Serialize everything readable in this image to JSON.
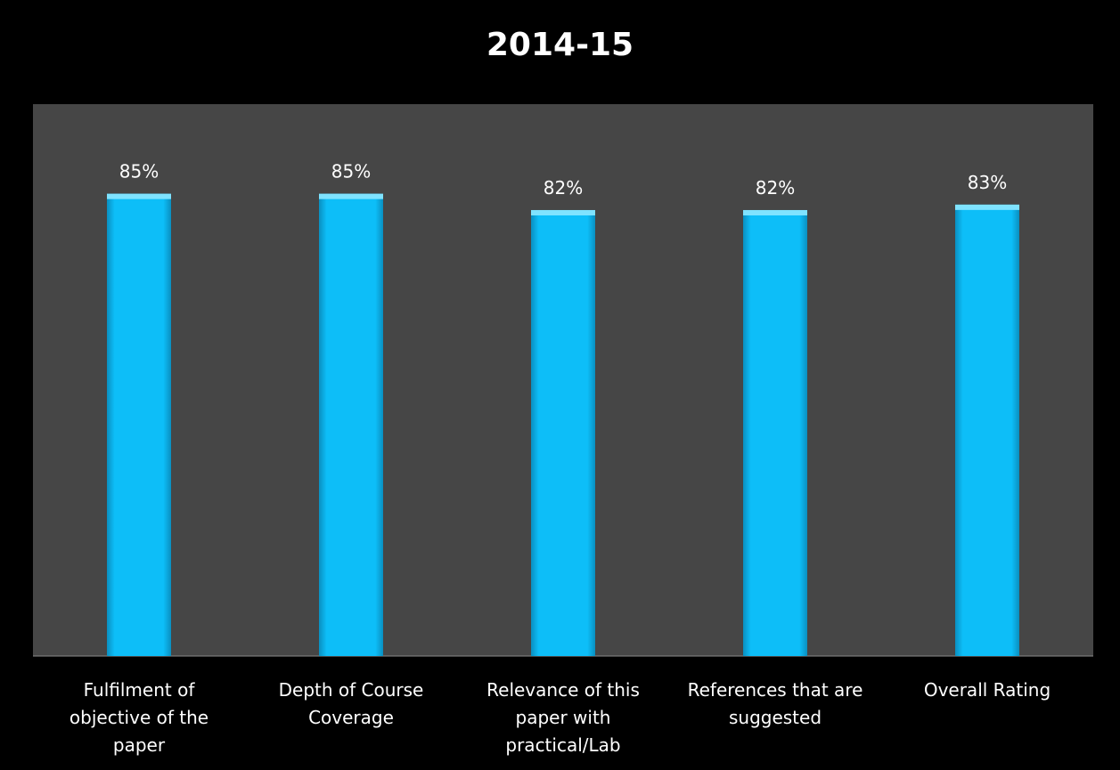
{
  "chart_data": {
    "type": "bar",
    "title": "2014-15",
    "categories": [
      [
        "Fulfilment of",
        "objective of the",
        "paper"
      ],
      [
        "Depth of Course",
        "Coverage"
      ],
      [
        "Relevance of this",
        "paper with",
        "practical/Lab"
      ],
      [
        "References that are",
        "suggested"
      ],
      [
        "Overall Rating"
      ]
    ],
    "values": [
      85,
      85,
      82,
      82,
      83
    ],
    "data_labels": [
      "85%",
      "85%",
      "82%",
      "82%",
      "83%"
    ],
    "unit": "%",
    "ylim": [
      0,
      100
    ],
    "grid": false,
    "legend": "none",
    "colors": {
      "page_background": "#000000",
      "plot_background": "#464646",
      "bar_fill": "#0DBEF8",
      "bar_highlight": "#7FE3FF",
      "bar_shadow": "#0A8FC0",
      "text": "#FFFFFF"
    }
  }
}
